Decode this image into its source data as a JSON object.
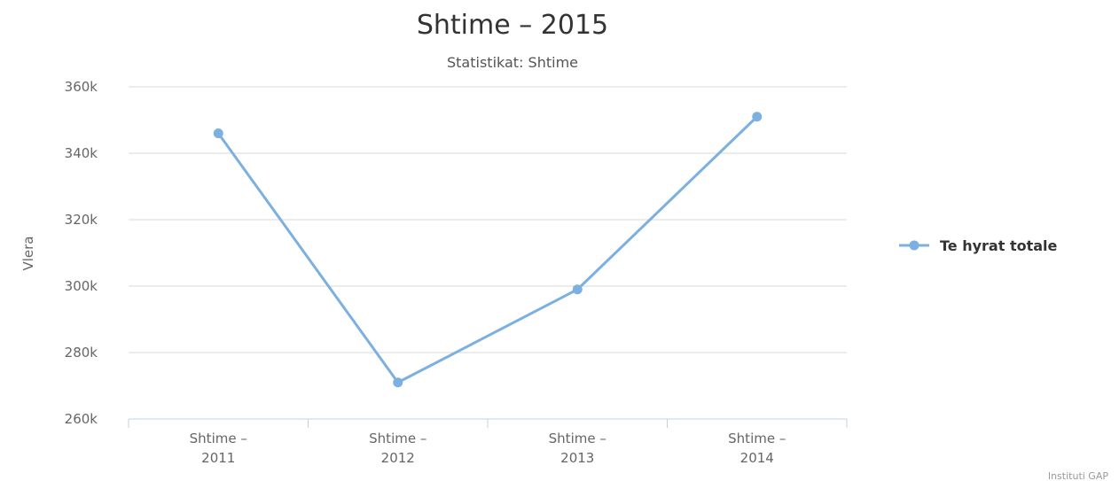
{
  "chart_data": {
    "type": "line",
    "title": "Shtime – 2015",
    "subtitle": "Statistikat: Shtime",
    "xlabel": "",
    "ylabel": "Vlera",
    "categories": [
      [
        "Shtime –",
        "2011"
      ],
      [
        "Shtime –",
        "2012"
      ],
      [
        "Shtime –",
        "2013"
      ],
      [
        "Shtime –",
        "2014"
      ]
    ],
    "yticks": [
      "260k",
      "280k",
      "300k",
      "320k",
      "340k",
      "360k"
    ],
    "ylim": [
      260000,
      360000
    ],
    "grid": true,
    "legend_position": "right",
    "series": [
      {
        "name": "Te hyrat totale",
        "color": "#7cb0e0",
        "values": [
          346000,
          271000,
          299000,
          351000
        ]
      }
    ],
    "credit": "Instituti GAP"
  }
}
